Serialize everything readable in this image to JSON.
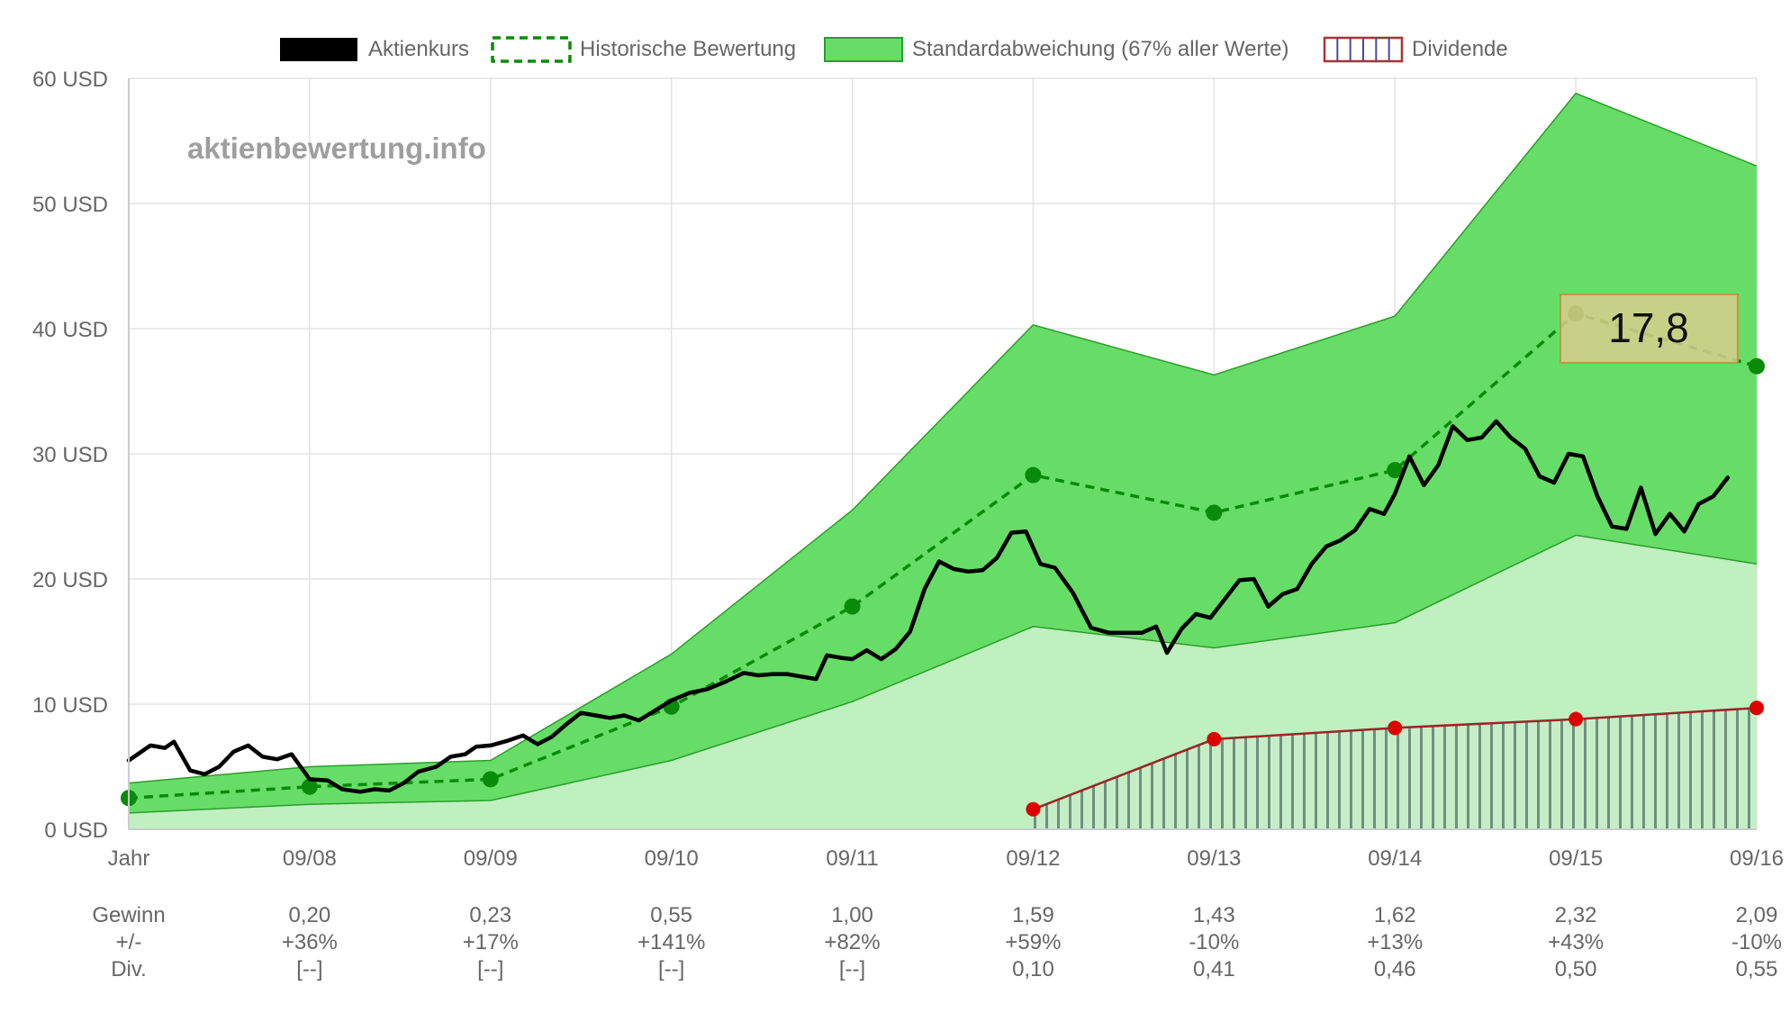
{
  "chart_data": {
    "type": "line",
    "watermark": "aktienbewertung.info",
    "legend": [
      {
        "label": "Aktienkurs",
        "color": "#000000",
        "style": "solid-fill"
      },
      {
        "label": "Historische Bewertung",
        "color": "#0a8a0a",
        "style": "dashed"
      },
      {
        "label": "Standardabweichung (67% aller Werte)",
        "color": "#66dd66",
        "style": "solid-fill"
      },
      {
        "label": "Dividende",
        "color": "#b03030",
        "style": "hatched"
      }
    ],
    "ylim": [
      0,
      60
    ],
    "y_ticks": [
      0,
      10,
      20,
      30,
      40,
      50,
      60
    ],
    "y_tick_labels": [
      "0 USD",
      "10 USD",
      "20 USD",
      "30 USD",
      "40 USD",
      "50 USD",
      "60 USD"
    ],
    "categories": [
      "Jahr",
      "09/08",
      "09/09",
      "09/10",
      "09/11",
      "09/12",
      "09/13",
      "09/14",
      "09/15",
      "09/16"
    ],
    "historische_bewertung": [
      2.5,
      3.4,
      4.0,
      9.8,
      17.8,
      28.3,
      25.3,
      28.7,
      41.2,
      37.0
    ],
    "std_upper": [
      3.7,
      5.0,
      5.5,
      14.0,
      25.5,
      40.3,
      36.3,
      41.0,
      58.8,
      53.0
    ],
    "std_lower": [
      1.3,
      2.0,
      2.3,
      5.5,
      10.2,
      16.2,
      14.5,
      16.5,
      23.5,
      21.2
    ],
    "dividende_x": [
      5,
      6,
      7,
      8,
      9
    ],
    "dividende": [
      1.6,
      7.2,
      8.1,
      8.8,
      9.7
    ],
    "aktienkurs": [
      [
        0.0,
        5.5
      ],
      [
        0.12,
        6.7
      ],
      [
        0.2,
        6.5
      ],
      [
        0.25,
        7.0
      ],
      [
        0.34,
        4.7
      ],
      [
        0.42,
        4.4
      ],
      [
        0.5,
        5.0
      ],
      [
        0.58,
        6.2
      ],
      [
        0.66,
        6.7
      ],
      [
        0.74,
        5.8
      ],
      [
        0.82,
        5.6
      ],
      [
        0.9,
        6.0
      ],
      [
        1.0,
        4.0
      ],
      [
        1.1,
        3.9
      ],
      [
        1.18,
        3.2
      ],
      [
        1.28,
        3.0
      ],
      [
        1.36,
        3.2
      ],
      [
        1.44,
        3.1
      ],
      [
        1.52,
        3.7
      ],
      [
        1.6,
        4.6
      ],
      [
        1.7,
        5.0
      ],
      [
        1.78,
        5.8
      ],
      [
        1.86,
        6.0
      ],
      [
        1.92,
        6.6
      ],
      [
        2.0,
        6.7
      ],
      [
        2.1,
        7.1
      ],
      [
        2.18,
        7.5
      ],
      [
        2.26,
        6.8
      ],
      [
        2.34,
        7.4
      ],
      [
        2.42,
        8.4
      ],
      [
        2.5,
        9.3
      ],
      [
        2.58,
        9.1
      ],
      [
        2.66,
        8.9
      ],
      [
        2.74,
        9.1
      ],
      [
        2.82,
        8.7
      ],
      [
        2.9,
        9.4
      ],
      [
        3.0,
        10.3
      ],
      [
        3.1,
        10.9
      ],
      [
        3.2,
        11.2
      ],
      [
        3.3,
        11.8
      ],
      [
        3.4,
        12.5
      ],
      [
        3.48,
        12.3
      ],
      [
        3.56,
        12.4
      ],
      [
        3.64,
        12.4
      ],
      [
        3.72,
        12.2
      ],
      [
        3.8,
        12.0
      ],
      [
        3.86,
        13.9
      ],
      [
        3.94,
        13.7
      ],
      [
        4.0,
        13.6
      ],
      [
        4.08,
        14.3
      ],
      [
        4.16,
        13.6
      ],
      [
        4.24,
        14.4
      ],
      [
        4.32,
        15.8
      ],
      [
        4.4,
        19.2
      ],
      [
        4.48,
        21.4
      ],
      [
        4.56,
        20.8
      ],
      [
        4.64,
        20.6
      ],
      [
        4.72,
        20.7
      ],
      [
        4.8,
        21.7
      ],
      [
        4.88,
        23.7
      ],
      [
        4.96,
        23.8
      ],
      [
        5.04,
        21.2
      ],
      [
        5.12,
        20.9
      ],
      [
        5.22,
        18.9
      ],
      [
        5.32,
        16.1
      ],
      [
        5.42,
        15.7
      ],
      [
        5.52,
        15.7
      ],
      [
        5.6,
        15.7
      ],
      [
        5.68,
        16.2
      ],
      [
        5.74,
        14.1
      ],
      [
        5.82,
        16.0
      ],
      [
        5.9,
        17.2
      ],
      [
        5.98,
        16.9
      ],
      [
        6.06,
        18.4
      ],
      [
        6.14,
        19.9
      ],
      [
        6.22,
        20.0
      ],
      [
        6.3,
        17.8
      ],
      [
        6.38,
        18.8
      ],
      [
        6.46,
        19.2
      ],
      [
        6.54,
        21.2
      ],
      [
        6.62,
        22.6
      ],
      [
        6.7,
        23.1
      ],
      [
        6.78,
        23.9
      ],
      [
        6.86,
        25.6
      ],
      [
        6.94,
        25.2
      ],
      [
        7.0,
        26.8
      ],
      [
        7.08,
        29.8
      ],
      [
        7.16,
        27.5
      ],
      [
        7.24,
        29.1
      ],
      [
        7.32,
        32.2
      ],
      [
        7.4,
        31.1
      ],
      [
        7.48,
        31.3
      ],
      [
        7.56,
        32.6
      ],
      [
        7.64,
        31.3
      ],
      [
        7.72,
        30.4
      ],
      [
        7.8,
        28.2
      ],
      [
        7.88,
        27.7
      ],
      [
        7.96,
        30.0
      ],
      [
        8.04,
        29.8
      ],
      [
        8.12,
        26.6
      ],
      [
        8.2,
        24.2
      ],
      [
        8.28,
        24.0
      ],
      [
        8.36,
        27.3
      ],
      [
        8.44,
        23.6
      ],
      [
        8.52,
        25.2
      ],
      [
        8.6,
        23.8
      ],
      [
        8.68,
        26.0
      ],
      [
        8.76,
        26.6
      ],
      [
        8.84,
        28.1
      ]
    ],
    "info_rows": {
      "labels": [
        "Gewinn",
        "+/-",
        "Div."
      ],
      "gewinn": [
        "",
        "0,20",
        "0,23",
        "0,55",
        "1,00",
        "1,59",
        "1,43",
        "1,62",
        "2,32",
        "2,09"
      ],
      "aenderung": [
        "",
        "+36%",
        "+17%",
        "+141%",
        "+82%",
        "+59%",
        "-10%",
        "+13%",
        "+43%",
        "-10%"
      ],
      "div": [
        "",
        "[--]",
        "[--]",
        "[--]",
        "[--]",
        "0,10",
        "0,41",
        "0,46",
        "0,50",
        "0,55"
      ]
    },
    "tooltip": {
      "value": "17,8"
    },
    "grid": true,
    "legend_position": "top"
  }
}
